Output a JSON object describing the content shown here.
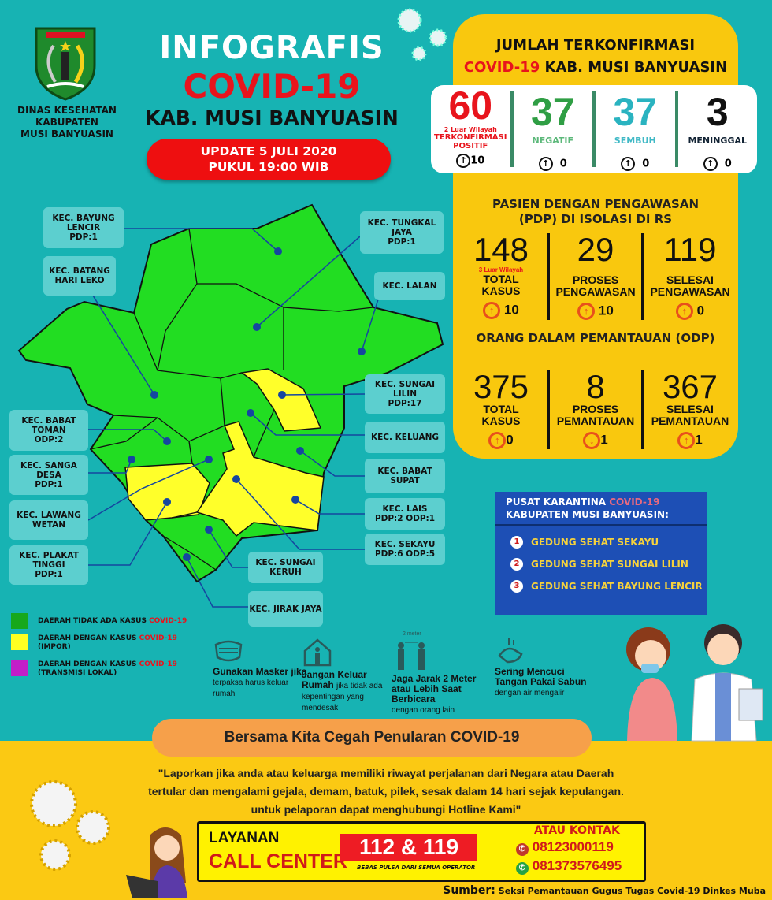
{
  "header": {
    "agency": [
      "DINAS KESEHATAN",
      "KABUPATEN",
      "MUSI BANYUASIN"
    ],
    "title_1": "INFOGRAFIS",
    "title_2": "COVID-19",
    "title_3": "KAB. MUSI BANYUASIN",
    "update_1": "UPDATE 5 JULI 2020",
    "update_2": "PUKUL 19:00 WIB"
  },
  "confirmed": {
    "heading_1": "JUMLAH TERKONFIRMASI",
    "heading_2_red": "COVID-19",
    "heading_2": "KAB. MUSI BANYUASIN",
    "stats": [
      {
        "value": "60",
        "note": "2 Luar Wilayah",
        "label_1": "TERKONFIRMASI",
        "label_2": "POSITIF",
        "change": "10",
        "direction": "up",
        "color": "#e8141c"
      },
      {
        "value": "37",
        "label_1": "NEGATIF",
        "change": "0",
        "direction": "up",
        "color": "#2f9e44"
      },
      {
        "value": "37",
        "label_1": "SEMBUH",
        "change": "0",
        "direction": "up",
        "color": "#2ab3c0"
      },
      {
        "value": "3",
        "label_1": "MENINGGAL",
        "change": "0",
        "direction": "up",
        "color": "#111111"
      }
    ]
  },
  "pdp": {
    "heading_1": "PASIEN DENGAN PENGAWASAN",
    "heading_2": "(PDP) DI ISOLASI DI RS",
    "stats": [
      {
        "value": "148",
        "note": "3 Luar Wilayah",
        "label_1": "TOTAL",
        "label_2": "KASUS",
        "change": "10",
        "direction": "up"
      },
      {
        "value": "29",
        "label_1": "PROSES",
        "label_2": "PENGAWASAN",
        "change": "10",
        "direction": "up"
      },
      {
        "value": "119",
        "label_1": "SELESAI",
        "label_2": "PENGAWASAN",
        "change": "0",
        "direction": "up"
      }
    ]
  },
  "odp": {
    "heading": "ORANG DALAM PEMANTAUAN (ODP)",
    "stats": [
      {
        "value": "375",
        "label_1": "TOTAL",
        "label_2": "KASUS",
        "change": "0",
        "direction": "up"
      },
      {
        "value": "8",
        "label_1": "PROSES",
        "label_2": "PEMANTAUAN",
        "change": "1",
        "direction": "down"
      },
      {
        "value": "367",
        "label_1": "SELESAI",
        "label_2": "PEMANTAUAN",
        "change": "1",
        "direction": "up"
      }
    ]
  },
  "map": {
    "districts": [
      {
        "name": "KEC. BAYUNG LENCIR",
        "stat": "PDP:1",
        "status": "none"
      },
      {
        "name": "KEC. BATANG HARI LEKO",
        "stat": "",
        "status": "none"
      },
      {
        "name": "KEC. TUNGKAL JAYA",
        "stat": "PDP:1",
        "status": "none"
      },
      {
        "name": "KEC. LALAN",
        "stat": "",
        "status": "none"
      },
      {
        "name": "KEC. SUNGAI LILIN",
        "stat": "PDP:17",
        "status": "import"
      },
      {
        "name": "KEC. KELUANG",
        "stat": "",
        "status": "none"
      },
      {
        "name": "KEC. BABAT SUPAT",
        "stat": "",
        "status": "none"
      },
      {
        "name": "KEC. LAIS",
        "stat": "PDP:2   ODP:1",
        "status": "import"
      },
      {
        "name": "KEC. SEKAYU",
        "stat": "PDP:6   ODP:5",
        "status": "import"
      },
      {
        "name": "KEC. SUNGAI KERUH",
        "stat": "",
        "status": "none"
      },
      {
        "name": "KEC. JIRAK JAYA",
        "stat": "",
        "status": "none"
      },
      {
        "name": "KEC. BABAT TOMAN",
        "stat": "ODP:2",
        "status": "none"
      },
      {
        "name": "KEC. SANGA DESA",
        "stat": "PDP:1",
        "status": "none"
      },
      {
        "name": "KEC. LAWANG WETAN",
        "stat": "",
        "status": "none"
      },
      {
        "name": "KEC. PLAKAT TINGGI",
        "stat": "PDP:1",
        "status": "import"
      }
    ]
  },
  "legend": [
    {
      "text": "DAERAH TIDAK ADA KASUS",
      "red": "COVID-19",
      "sub": "",
      "color": "#17a81c"
    },
    {
      "text": "DAERAH DENGAN KASUS",
      "red": "COVID-19",
      "sub": "(IMPOR)",
      "color": "#ffff22"
    },
    {
      "text": "DAERAH DENGAN KASUS",
      "red": "COVID-19",
      "sub": "(TRANSMISI LOKAL)",
      "color": "#c21ec8"
    }
  ],
  "quarantine": {
    "heading_1": "PUSAT KARANTINA",
    "heading_1_red": "COVID-19",
    "heading_2": "KABUPATEN MUSI BANYUASIN:",
    "items": [
      "GEDUNG SEHAT SEKAYU",
      "GEDUNG SEHAT SUNGAI LILIN",
      "GEDUNG SEHAT BAYUNG LENCIR"
    ]
  },
  "tips": [
    {
      "bold": "Gunakan Masker jika",
      "text": "terpaksa harus keluar rumah",
      "icon": "mask-icon"
    },
    {
      "bold": "Jangan Keluar Rumah",
      "text": "jika tidak ada kepentingan yang mendesak",
      "icon": "house-icon"
    },
    {
      "bold": "Jaga Jarak 2 Meter atau Lebih Saat Berbicara",
      "text": "dengan orang lain",
      "icon": "distance-icon",
      "icon_label": "2 meter"
    },
    {
      "bold": "Sering Mencuci Tangan Pakai Sabun",
      "text": "dengan air mengalir",
      "icon": "handwash-icon"
    }
  ],
  "slogan": "Bersama Kita Cegah Penularan COVID-19",
  "quote": [
    "\"Laporkan jika anda atau keluarga memiliki riwayat perjalanan dari Negara atau Daerah",
    "tertular dan mengalami gejala, demam, batuk, pilek, sesak dalam 14 hari sejak kepulangan.",
    "untuk pelaporan dapat menghubungi  Hotline Kami\""
  ],
  "callcenter": {
    "label_1": "LAYANAN",
    "label_2": "CALL CENTER",
    "number": "112 & 119",
    "number_note": "BEBAS PULSA DARI SEMUA OPERATOR",
    "contact_label": "ATAU KONTAK",
    "phone": "08123000119",
    "whatsapp": "081373576495"
  },
  "source": {
    "label": "Sumber:",
    "text": "Seksi Pemantauan Gugus Tugas Covid-19 Dinkes Muba"
  },
  "colors": {
    "background": "#17b3b3",
    "panel": "#f9c80e",
    "green_area": "#22dd22",
    "yellow_area": "#ffff2a",
    "quarantine_bg": "#1d4fb5"
  }
}
